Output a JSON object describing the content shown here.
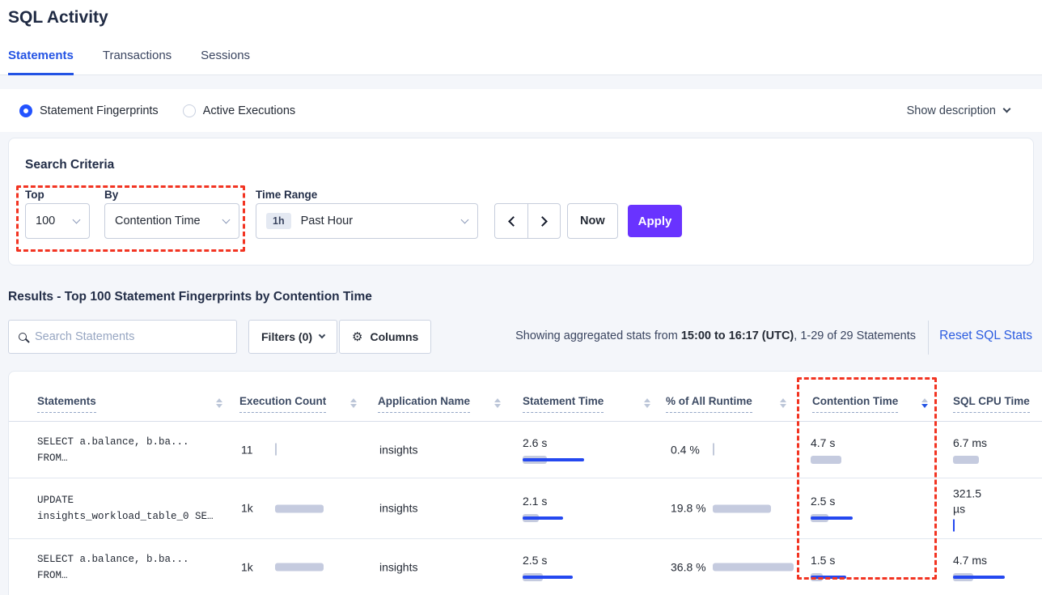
{
  "page": {
    "title": "SQL Activity"
  },
  "tabs": {
    "items": [
      {
        "label": "Statements",
        "active": true
      },
      {
        "label": "Transactions",
        "active": false
      },
      {
        "label": "Sessions",
        "active": false
      }
    ]
  },
  "toggle": {
    "fingerprints_label": "Statement Fingerprints",
    "active_exec_label": "Active Executions",
    "show_description_label": "Show description"
  },
  "criteria": {
    "title": "Search Criteria",
    "top_label": "Top",
    "top_value": "100",
    "by_label": "By",
    "by_value": "Contention Time",
    "time_label": "Time Range",
    "time_badge": "1h",
    "time_value": "Past Hour",
    "now_label": "Now",
    "apply_label": "Apply"
  },
  "results": {
    "title": "Results - Top 100 Statement Fingerprints by Contention Time",
    "search_placeholder": "Search Statements",
    "filters_label": "Filters (0)",
    "columns_label": "Columns",
    "stats_prefix": "Showing aggregated stats from ",
    "stats_bold": "15:00 to 16:17 (UTC)",
    "stats_suffix": ", 1-29 of 29 Statements",
    "reset_label": "Reset SQL Stats"
  },
  "icons": {
    "gear": "⚙"
  },
  "table": {
    "headers": [
      "Statements",
      "Execution Count",
      "Application Name",
      "Statement Time",
      "% of All Runtime",
      "Contention Time",
      "SQL CPU Time"
    ],
    "sorted_column": "Contention Time",
    "sort_direction": "desc",
    "rows": [
      {
        "sql_line1": "SELECT a.balance, b.ba...",
        "sql_line2": "FROM…",
        "execution_count": "11",
        "application_name": "insights",
        "statement_time": "2.6 s",
        "pct_of_runtime": "0.4 %",
        "contention_time": "4.7 s",
        "sql_cpu_time": "6.7 ms",
        "bars": {
          "exec": {
            "tick": 1
          },
          "stmt": {
            "gray": 30,
            "blue": 76
          },
          "pct": {
            "tick": 1
          },
          "cont": {
            "gray": 38
          },
          "cpu": {
            "gray": 32
          }
        }
      },
      {
        "sql_line1": "UPDATE",
        "sql_line2": "insights_workload_table_0 SE…",
        "execution_count": "1k",
        "application_name": "insights",
        "statement_time": "2.1 s",
        "pct_of_runtime": "19.8 %",
        "contention_time": "2.5 s",
        "sql_cpu_time": "321.5 µs",
        "bars": {
          "exec": {
            "gray": 60
          },
          "stmt": {
            "gray": 20,
            "blue": 50
          },
          "pct": {
            "gray": 72
          },
          "cont": {
            "gray": 22,
            "blue": 52
          },
          "cpu": {
            "bluetick": 1
          }
        }
      },
      {
        "sql_line1": "SELECT a.balance, b.ba...",
        "sql_line2": "FROM…",
        "execution_count": "1k",
        "application_name": "insights",
        "statement_time": "2.5 s",
        "pct_of_runtime": "36.8 %",
        "contention_time": "1.5 s",
        "sql_cpu_time": "4.7 ms",
        "bars": {
          "exec": {
            "gray": 60
          },
          "stmt": {
            "gray": 25,
            "blue": 62
          },
          "pct": {
            "gray": 100
          },
          "cont": {
            "gray": 15,
            "blue": 44
          },
          "cpu": {
            "gray": 25,
            "blue": 64
          }
        }
      }
    ]
  },
  "colors": {
    "accent_blue": "#2353e4",
    "apply_purple": "#6933ff",
    "annotation_red": "#f23422",
    "bar_gray": "#c5cbdf",
    "bar_blue": "#2448f0"
  }
}
